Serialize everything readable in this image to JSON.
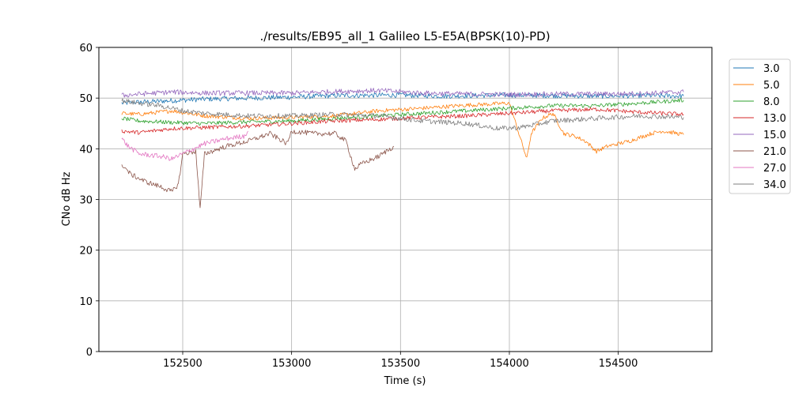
{
  "chart_data": {
    "type": "line",
    "title": "./results/EB95_all_1 Galileo L5-E5A(BPSK(10)-PD)",
    "xlabel": "Time (s)",
    "ylabel": "CNo dB Hz",
    "xlim": [
      152115,
      154930
    ],
    "ylim": [
      0,
      60
    ],
    "x_ticks": [
      152500,
      153000,
      153500,
      154000,
      154500
    ],
    "x_tick_labels": [
      "152500",
      "153000",
      "153500",
      "154000",
      "154500"
    ],
    "y_ticks": [
      0,
      10,
      20,
      30,
      40,
      50,
      60
    ],
    "y_tick_labels": [
      "0",
      "10",
      "20",
      "30",
      "40",
      "50",
      "60"
    ],
    "grid": true,
    "legend_position": "outside-right",
    "series": [
      {
        "name": "3.0",
        "color": "#1f77b4",
        "noise": 0.5,
        "pts": [
          [
            152220,
            49.0
          ],
          [
            152300,
            49.2
          ],
          [
            152450,
            49.5
          ],
          [
            152600,
            49.8
          ],
          [
            152800,
            50.0
          ],
          [
            153000,
            50.2
          ],
          [
            153200,
            50.5
          ],
          [
            153500,
            50.6
          ],
          [
            153700,
            50.4
          ],
          [
            154000,
            50.6
          ],
          [
            154200,
            50.5
          ],
          [
            154400,
            50.4
          ],
          [
            154600,
            50.5
          ],
          [
            154800,
            50.4
          ]
        ]
      },
      {
        "name": "5.0",
        "color": "#ff7f0e",
        "noise": 0.4,
        "pts": [
          [
            152220,
            47.0
          ],
          [
            152300,
            46.8
          ],
          [
            152450,
            47.5
          ],
          [
            152600,
            46.5
          ],
          [
            152800,
            46.0
          ],
          [
            153000,
            46.2
          ],
          [
            153200,
            46.5
          ],
          [
            153400,
            47.5
          ],
          [
            153600,
            48.0
          ],
          [
            153800,
            48.6
          ],
          [
            154000,
            49.0
          ],
          [
            154080,
            38.0
          ],
          [
            154100,
            43.0
          ],
          [
            154150,
            46.0
          ],
          [
            154200,
            47.0
          ],
          [
            154250,
            43.0
          ],
          [
            154300,
            42.5
          ],
          [
            154350,
            41.5
          ],
          [
            154400,
            39.5
          ],
          [
            154450,
            40.5
          ],
          [
            154550,
            41.5
          ],
          [
            154650,
            43.0
          ],
          [
            154700,
            43.5
          ],
          [
            154750,
            43.2
          ],
          [
            154800,
            42.8
          ]
        ]
      },
      {
        "name": "8.0",
        "color": "#2ca02c",
        "noise": 0.4,
        "pts": [
          [
            152220,
            46.0
          ],
          [
            152300,
            45.5
          ],
          [
            152450,
            45.2
          ],
          [
            152600,
            45.0
          ],
          [
            152800,
            45.3
          ],
          [
            153000,
            45.5
          ],
          [
            153200,
            46.0
          ],
          [
            153400,
            46.5
          ],
          [
            153600,
            47.0
          ],
          [
            153800,
            47.5
          ],
          [
            154000,
            48.0
          ],
          [
            154200,
            48.5
          ],
          [
            154400,
            48.5
          ],
          [
            154600,
            49.0
          ],
          [
            154800,
            49.6
          ]
        ]
      },
      {
        "name": "13.0",
        "color": "#d62728",
        "noise": 0.4,
        "pts": [
          [
            152220,
            43.5
          ],
          [
            152300,
            43.2
          ],
          [
            152450,
            44.0
          ],
          [
            152600,
            44.2
          ],
          [
            152800,
            44.5
          ],
          [
            153000,
            45.0
          ],
          [
            153200,
            45.5
          ],
          [
            153400,
            45.8
          ],
          [
            153600,
            46.2
          ],
          [
            153800,
            46.5
          ],
          [
            154000,
            47.0
          ],
          [
            154200,
            47.5
          ],
          [
            154400,
            47.8
          ],
          [
            154600,
            47.2
          ],
          [
            154800,
            46.8
          ]
        ]
      },
      {
        "name": "15.0",
        "color": "#9467bd",
        "noise": 0.5,
        "pts": [
          [
            152220,
            50.5
          ],
          [
            152300,
            50.8
          ],
          [
            152450,
            51.2
          ],
          [
            152600,
            51.0
          ],
          [
            152800,
            51.0
          ],
          [
            153000,
            51.0
          ],
          [
            153200,
            51.3
          ],
          [
            153400,
            51.5
          ],
          [
            153600,
            51.0
          ],
          [
            153800,
            50.8
          ],
          [
            154000,
            50.7
          ],
          [
            154200,
            50.8
          ],
          [
            154400,
            50.8
          ],
          [
            154600,
            50.9
          ],
          [
            154800,
            51.2
          ]
        ]
      },
      {
        "name": "21.0",
        "color": "#8c564b",
        "noise": 0.5,
        "pts": [
          [
            152220,
            37.0
          ],
          [
            152260,
            35.0
          ],
          [
            152330,
            33.5
          ],
          [
            152400,
            32.5
          ],
          [
            152450,
            31.5
          ],
          [
            152480,
            33.0
          ],
          [
            152500,
            39.0
          ],
          [
            152560,
            39.5
          ],
          [
            152580,
            28.0
          ],
          [
            152600,
            39.0
          ],
          [
            152700,
            40.5
          ],
          [
            152800,
            41.5
          ],
          [
            152900,
            43.0
          ],
          [
            152980,
            41.0
          ],
          [
            153000,
            43.5
          ],
          [
            153100,
            43.0
          ],
          [
            153200,
            43.0
          ],
          [
            153250,
            41.5
          ],
          [
            153290,
            36.0
          ],
          [
            153320,
            37.0
          ],
          [
            153400,
            38.5
          ],
          [
            153470,
            40.5
          ]
        ]
      },
      {
        "name": "27.0",
        "color": "#e377c2",
        "noise": 0.5,
        "pts": [
          [
            152220,
            42.0
          ],
          [
            152250,
            40.5
          ],
          [
            152300,
            39.0
          ],
          [
            152400,
            38.5
          ],
          [
            152450,
            38.0
          ],
          [
            152500,
            39.0
          ],
          [
            152550,
            40.0
          ],
          [
            152600,
            41.0
          ],
          [
            152700,
            42.0
          ],
          [
            152780,
            42.5
          ],
          [
            152800,
            43.5
          ]
        ]
      },
      {
        "name": "34.0",
        "color": "#7f7f7f",
        "noise": 0.5,
        "pts": [
          [
            152220,
            49.5
          ],
          [
            152300,
            49.0
          ],
          [
            152400,
            48.5
          ],
          [
            152500,
            47.5
          ],
          [
            152600,
            47.0
          ],
          [
            152800,
            46.5
          ],
          [
            153000,
            46.5
          ],
          [
            153200,
            46.8
          ],
          [
            153400,
            46.5
          ],
          [
            153600,
            45.5
          ],
          [
            153800,
            45.0
          ],
          [
            153950,
            44.0
          ],
          [
            154050,
            44.2
          ],
          [
            154200,
            45.5
          ],
          [
            154400,
            46.0
          ],
          [
            154600,
            46.5
          ],
          [
            154800,
            46.2
          ]
        ]
      }
    ]
  }
}
